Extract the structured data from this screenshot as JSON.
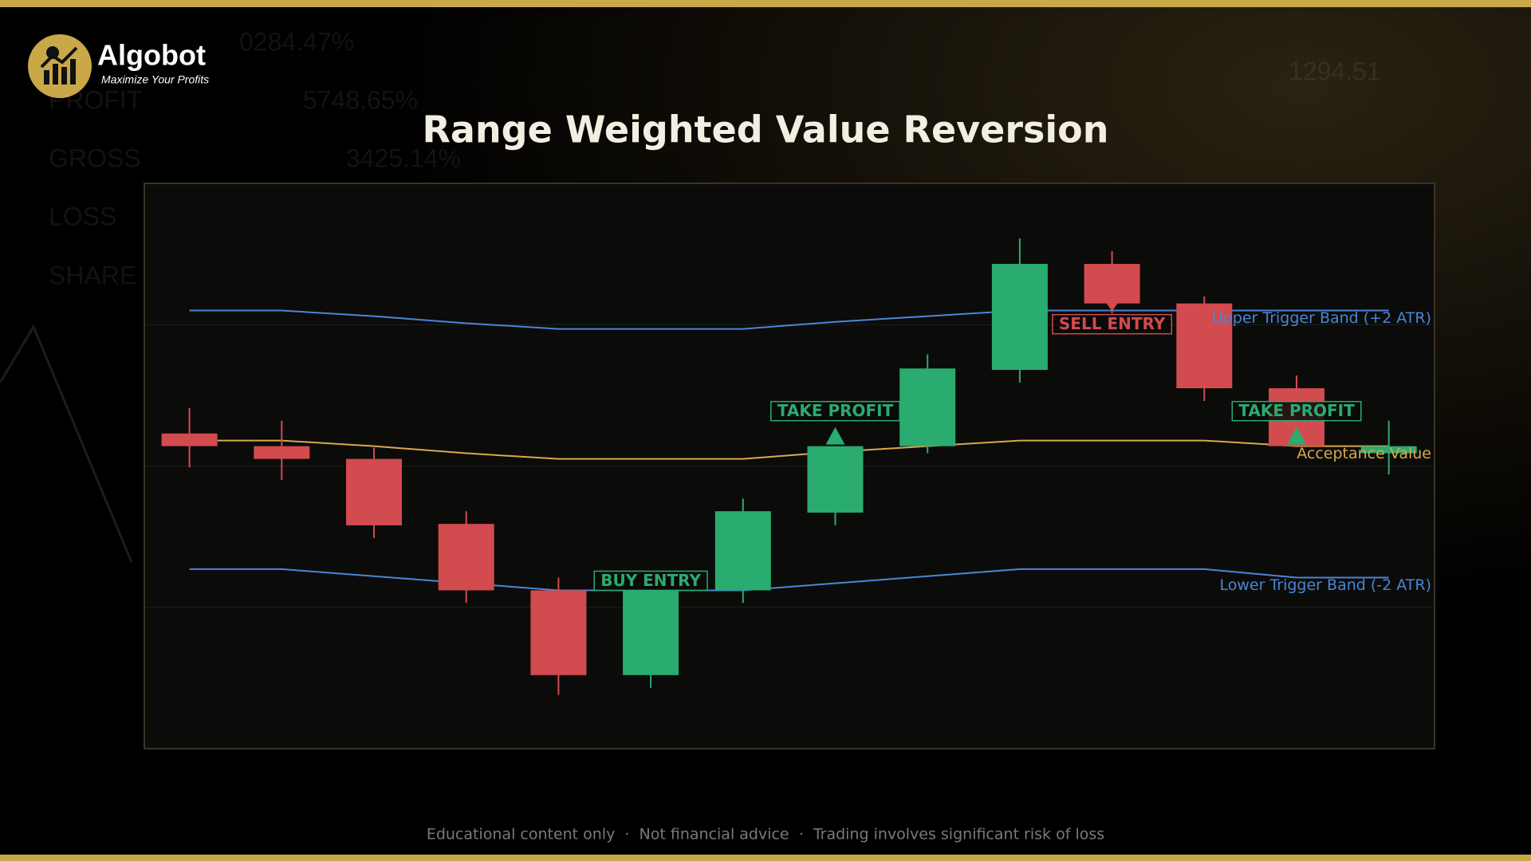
{
  "header": {
    "brand": "Algobot",
    "tagline": "Maximize Your Profits"
  },
  "background": {
    "texts": [
      "0284.47%",
      "PROFIT",
      "5748.65%",
      "GROSS",
      "3425.14%",
      "LOSS",
      "SHARE",
      "1294.51"
    ]
  },
  "chart_data": {
    "type": "candlestick",
    "title": "Range Weighted Value Reversion",
    "categories": [
      null,
      null,
      null,
      null,
      null,
      null,
      null,
      null,
      null,
      null,
      null,
      null,
      null,
      null
    ],
    "open": [
      102.3,
      101.4,
      100.5,
      95.9,
      91.2,
      85.2,
      91.2,
      96.7,
      101.4,
      106.8,
      114.3,
      111.5,
      105.5,
      100.9
    ],
    "high": [
      104.1,
      103.2,
      101.3,
      96.8,
      92.1,
      91.2,
      97.7,
      101.4,
      107.9,
      116.1,
      115.2,
      112.0,
      106.4,
      103.2
    ],
    "low": [
      99.9,
      99.0,
      94.9,
      90.3,
      83.8,
      84.3,
      90.3,
      95.8,
      100.9,
      105.9,
      110.8,
      104.6,
      101.4,
      99.4
    ],
    "close": [
      101.4,
      100.5,
      95.8,
      91.2,
      85.2,
      91.2,
      96.8,
      101.4,
      106.9,
      114.3,
      111.5,
      105.5,
      101.4,
      101.4
    ],
    "up_color": "#2aab6f",
    "down_color": "#d24b4f",
    "ylim": [
      80,
      120
    ],
    "yticks": [
      90,
      100,
      110
    ],
    "grid": true,
    "lines": [
      {
        "name": "Upper Trigger Band (+2 ATR)",
        "color": "#4a86d4",
        "values": [
          111.0,
          111.0,
          110.6,
          110.1,
          109.7,
          109.7,
          109.7,
          110.2,
          110.6,
          111.0,
          111.0,
          111.0,
          111.0,
          111.0
        ]
      },
      {
        "name": "Acceptance Value",
        "color": "#d9a94a",
        "values": [
          101.8,
          101.8,
          101.4,
          100.9,
          100.5,
          100.5,
          100.5,
          101.0,
          101.4,
          101.8,
          101.8,
          101.8,
          101.4,
          101.4
        ]
      },
      {
        "name": "Lower Trigger Band (-2 ATR)",
        "color": "#4a86d4",
        "values": [
          92.7,
          92.7,
          92.2,
          91.7,
          91.2,
          91.2,
          91.2,
          91.7,
          92.2,
          92.7,
          92.7,
          92.7,
          92.1,
          92.1
        ]
      }
    ],
    "annotations": [
      {
        "text": "BUY ENTRY",
        "candle": 5,
        "position": "above",
        "arrow": false,
        "color": "#2aab6f"
      },
      {
        "text": "TAKE PROFIT",
        "candle": 7,
        "position": "above",
        "arrow": true,
        "color": "#2aab6f"
      },
      {
        "text": "SELL ENTRY",
        "candle": 10,
        "position": "below",
        "arrow": true,
        "color": "#d24b4f"
      },
      {
        "text": "TAKE PROFIT",
        "candle": 12,
        "position": "above",
        "arrow": true,
        "color": "#2aab6f"
      }
    ],
    "footer": "Educational content only  ·  Not financial advice  ·  Trading involves significant risk of loss"
  }
}
